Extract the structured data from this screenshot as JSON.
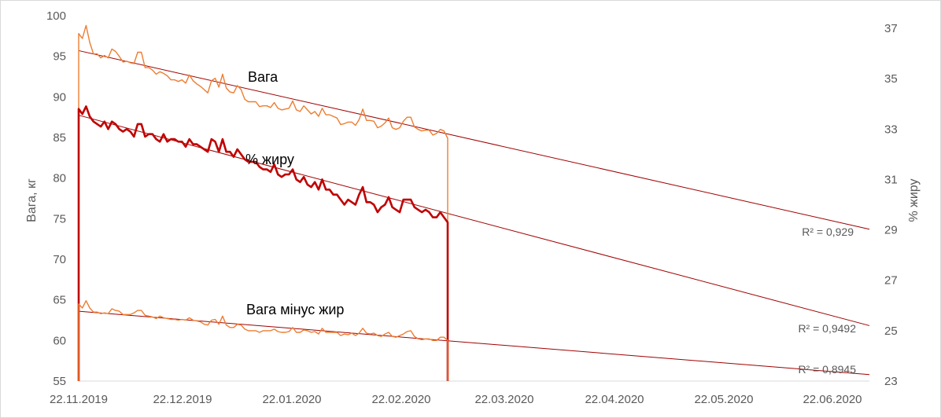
{
  "chart_data": {
    "type": "line",
    "title": "",
    "xlabel": "",
    "ylabel": "Вага, кг",
    "y2label": "% жиру",
    "x_ticks": [
      "22.11.2019",
      "22.12.2019",
      "22.01.2020",
      "22.02.2020",
      "22.03.2020",
      "22.04.2020",
      "22.05.2020",
      "22.06.2020"
    ],
    "y_ticks": [
      55,
      60,
      65,
      70,
      75,
      80,
      85,
      90,
      95,
      100
    ],
    "y2_ticks": [
      23,
      25,
      27,
      29,
      31,
      33,
      35,
      37
    ],
    "ylim": [
      55,
      100
    ],
    "y2lim": [
      23,
      37.5
    ],
    "grid": false,
    "legend": "none",
    "annotations": {
      "weight": "Вага",
      "fat": "% жиру",
      "lean": "Вага мінус жир",
      "r2_weight": "R² = 0,929",
      "r2_fat": "R² = 0,9492",
      "r2_lean": "R² = 0,8945"
    },
    "series": [
      {
        "name": "Вага",
        "axis": "left",
        "color": "#ed7d31",
        "values": [
          97.8,
          97.2,
          98.8,
          96.7,
          95.3,
          95.3,
          94.8,
          95.1,
          94.8,
          95.9,
          95.6,
          95.0,
          94.3,
          94.4,
          94.2,
          94.1,
          95.5,
          95.5,
          93.6,
          93.6,
          93.3,
          92.8,
          93.1,
          92.9,
          92.6,
          92.1,
          92.1,
          91.9,
          92.1,
          91.7,
          92.7,
          92.0,
          91.6,
          91.3,
          90.9,
          90.5,
          92.0,
          92.3,
          91.2,
          92.8,
          91.1,
          90.6,
          90.5,
          91.4,
          90.9,
          89.7,
          89.4,
          89.4,
          89.4,
          88.8,
          88.9,
          88.9,
          88.7,
          89.3,
          88.6,
          88.4,
          88.5,
          88.6,
          89.5,
          88.4,
          88.2,
          88.9,
          88.4,
          87.9,
          88.2,
          87.6,
          88.6,
          87.8,
          87.8,
          87.6,
          87.4,
          86.6,
          86.7,
          86.9,
          86.9,
          86.5,
          87.2,
          88.5,
          87.1,
          87.1,
          87.0,
          86.2,
          86.4,
          86.8,
          87.4,
          86.2,
          86.0,
          86.2,
          87.0,
          87.5,
          87.5,
          86.3,
          86.0,
          85.8,
          85.9,
          85.9,
          85.3,
          85.5,
          86.0,
          85.8,
          84.9
        ]
      },
      {
        "name": "% жиру",
        "axis": "right",
        "color": "#c00000",
        "values": [
          33.8,
          33.6,
          33.9,
          33.5,
          33.3,
          33.2,
          33.1,
          33.3,
          33.0,
          33.3,
          33.2,
          33.0,
          32.9,
          33.0,
          32.9,
          32.7,
          33.2,
          33.2,
          32.7,
          32.8,
          32.8,
          32.6,
          32.5,
          32.8,
          32.5,
          32.6,
          32.6,
          32.5,
          32.5,
          32.3,
          32.6,
          32.4,
          32.4,
          32.3,
          32.2,
          32.1,
          32.6,
          32.5,
          32.1,
          32.6,
          32.1,
          32.1,
          31.9,
          32.2,
          32.0,
          31.8,
          31.7,
          31.7,
          31.7,
          31.5,
          31.4,
          31.4,
          31.3,
          31.6,
          31.2,
          31.1,
          31.2,
          31.2,
          31.4,
          31.0,
          30.9,
          31.1,
          30.8,
          30.7,
          30.9,
          30.6,
          31.0,
          30.6,
          30.6,
          30.4,
          30.4,
          30.2,
          30.0,
          30.2,
          30.1,
          30.0,
          30.4,
          30.7,
          30.1,
          30.1,
          30.0,
          29.7,
          29.9,
          30.0,
          30.3,
          29.9,
          29.8,
          29.7,
          30.2,
          30.2,
          30.2,
          29.9,
          29.8,
          29.7,
          29.8,
          29.7,
          29.5,
          29.5,
          29.7,
          29.5,
          29.3
        ]
      },
      {
        "name": "Вага мінус жир",
        "axis": "left",
        "color": "#ed7d31",
        "values": [
          64.5,
          64.0,
          64.9,
          64.0,
          63.5,
          63.5,
          63.3,
          63.4,
          63.3,
          63.9,
          63.7,
          63.6,
          63.2,
          63.2,
          63.2,
          63.4,
          63.7,
          63.7,
          63.1,
          63.0,
          62.9,
          62.7,
          63.0,
          62.8,
          62.7,
          62.6,
          62.6,
          62.5,
          62.6,
          62.5,
          62.8,
          62.5,
          62.4,
          62.3,
          62.0,
          61.9,
          62.5,
          62.6,
          62.0,
          63.0,
          61.9,
          61.6,
          61.6,
          62.0,
          61.9,
          61.4,
          61.2,
          61.2,
          61.2,
          61.0,
          61.2,
          61.2,
          61.2,
          61.4,
          61.1,
          61.0,
          61.0,
          61.1,
          61.6,
          61.0,
          61.0,
          61.3,
          61.2,
          61.0,
          61.1,
          60.8,
          61.5,
          61.0,
          61.0,
          61.0,
          61.0,
          60.6,
          60.8,
          60.7,
          60.9,
          60.6,
          60.9,
          61.5,
          60.9,
          60.8,
          60.9,
          60.6,
          60.5,
          60.8,
          61.0,
          60.5,
          60.4,
          60.6,
          60.8,
          61.1,
          61.2,
          60.5,
          60.2,
          60.1,
          60.2,
          60.2,
          60.0,
          60.0,
          60.4,
          60.4,
          60.0
        ]
      }
    ],
    "trendlines": [
      {
        "series": "Вага",
        "axis": "left",
        "color": "#a00000",
        "y_start": 95.7,
        "y_end": 73.7
      },
      {
        "series": "% жиру",
        "axis": "right",
        "color": "#a00000",
        "y_start": 33.55,
        "y_end": 25.2
      },
      {
        "series": "Вага мінус жир",
        "axis": "left",
        "color": "#a00000",
        "y_start": 63.6,
        "y_end": 55.8
      }
    ]
  }
}
